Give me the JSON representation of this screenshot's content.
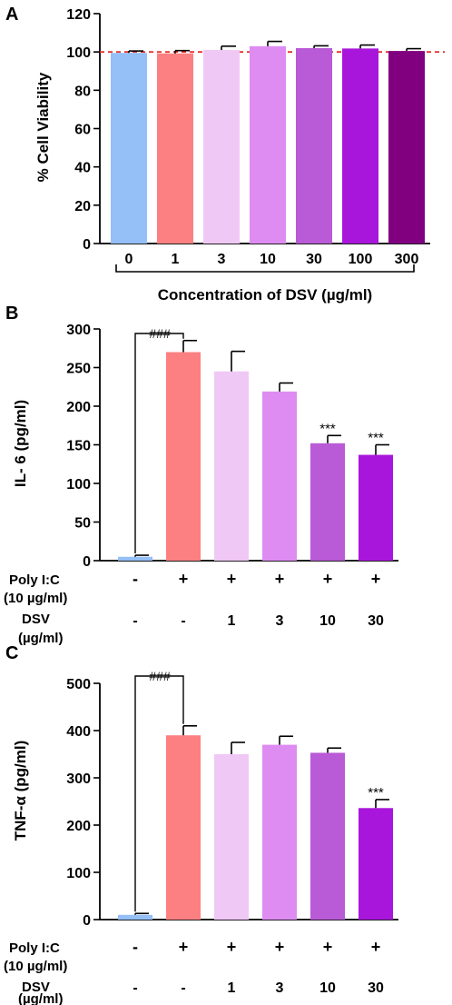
{
  "panels": {
    "a": {
      "letter": "A",
      "ylabel": "% Cell Viability",
      "xlabel": "Concentration of DSV (µg/ml)",
      "yticks": [
        "0",
        "20",
        "40",
        "60",
        "80",
        "100",
        "120"
      ]
    },
    "b": {
      "letter": "B",
      "ylabel": "IL- 6 (pg/ml)",
      "yticks": [
        "0",
        "50",
        "100",
        "150",
        "200",
        "250",
        "300"
      ],
      "hash_label": "###",
      "row1_label_line1": "Poly I:C",
      "row1_label_line2": "(10 µg/ml)",
      "row2_label_line1": "DSV",
      "row2_label_line2": "(µg/ml)",
      "row1": [
        "-",
        "+",
        "+",
        "+",
        "+",
        "+"
      ],
      "row2": [
        "-",
        "-",
        "1",
        "3",
        "10",
        "30"
      ],
      "sig": [
        "",
        "",
        "",
        "",
        "***",
        "***"
      ]
    },
    "c": {
      "letter": "C",
      "ylabel": "TNF-α (pg/ml)",
      "yticks": [
        "0",
        "100",
        "200",
        "300",
        "400",
        "500"
      ],
      "hash_label": "###",
      "row1_label_line1": "Poly I:C",
      "row1_label_line2": "(10 µg/ml)",
      "row2_label_line1": "DSV",
      "row2_label_line2": "(µg/ml)",
      "row1": [
        "-",
        "+",
        "+",
        "+",
        "+",
        "+"
      ],
      "row2": [
        "-",
        "-",
        "1",
        "3",
        "10",
        "30"
      ],
      "sig": [
        "",
        "",
        "",
        "",
        "",
        "***"
      ]
    }
  },
  "chart_data": [
    {
      "type": "bar",
      "panel": "A",
      "xlabel": "Concentration of DSV (µg/ml)",
      "ylabel": "% Cell Viability",
      "ylim": [
        0,
        120
      ],
      "categories": [
        "0",
        "1",
        "3",
        "10",
        "30",
        "100",
        "300"
      ],
      "values": [
        99.5,
        99.2,
        101.0,
        103.0,
        102.0,
        101.8,
        100.5
      ],
      "errors": [
        1.0,
        1.5,
        2.0,
        2.5,
        1.2,
        1.8,
        1.2
      ],
      "reference_line": 100,
      "colors": [
        "#94bff7",
        "#fc8081",
        "#f0c8f5",
        "#de8cf2",
        "#b95ad6",
        "#a916db",
        "#800080"
      ]
    },
    {
      "type": "bar",
      "panel": "B",
      "ylabel": "IL- 6 (pg/ml)",
      "ylim": [
        0,
        300
      ],
      "values": [
        5,
        270,
        245,
        219,
        152,
        137
      ],
      "errors": [
        2,
        15,
        26,
        11,
        10,
        13
      ],
      "colors": [
        "#94bff7",
        "#fc8081",
        "#f0c8f5",
        "#de8cf2",
        "#b95ad6",
        "#a916db"
      ]
    },
    {
      "type": "bar",
      "panel": "C",
      "ylabel": "TNF-α (pg/ml)",
      "ylim": [
        0,
        500
      ],
      "values": [
        10,
        390,
        350,
        370,
        353,
        236
      ],
      "errors": [
        3,
        20,
        25,
        18,
        10,
        18
      ],
      "colors": [
        "#94bff7",
        "#fc8081",
        "#f0c8f5",
        "#de8cf2",
        "#b95ad6",
        "#a916db"
      ]
    }
  ]
}
